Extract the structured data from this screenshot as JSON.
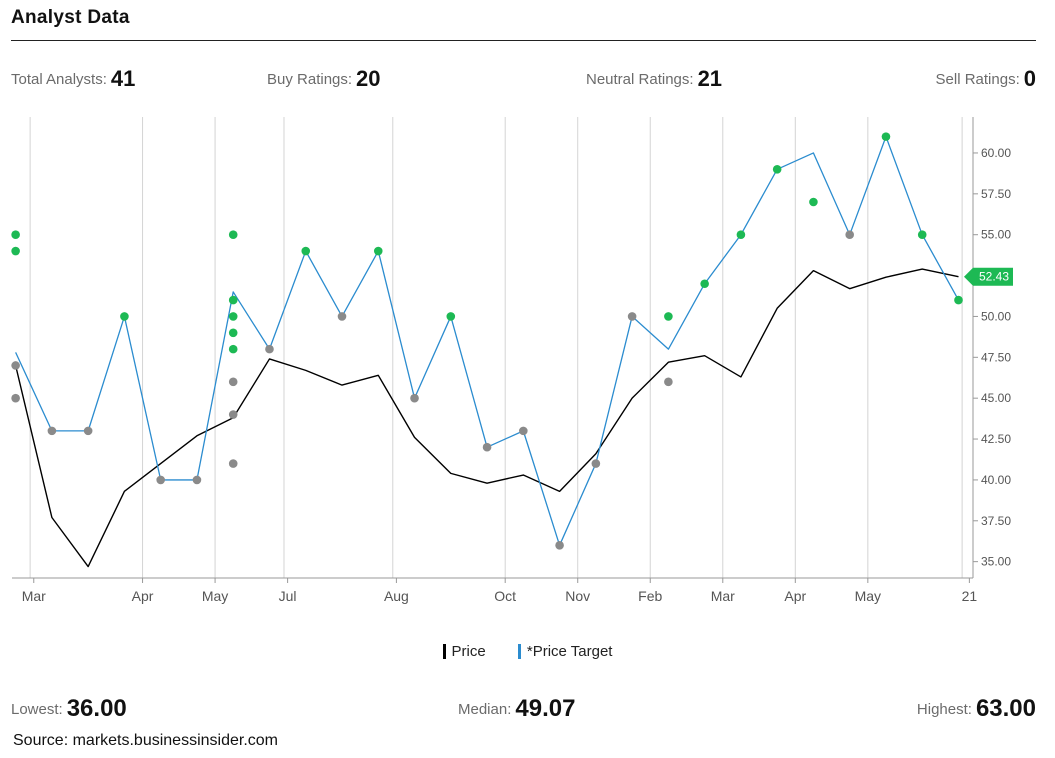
{
  "header": {
    "title": "Analyst Data"
  },
  "stats": {
    "total_label": "Total Analysts:",
    "total_value": "41",
    "buy_label": "Buy Ratings:",
    "buy_value": "20",
    "neutral_label": "Neutral Ratings:",
    "neutral_value": "21",
    "sell_label": "Sell Ratings:",
    "sell_value": "0"
  },
  "bottom": {
    "lowest_label": "Lowest:",
    "lowest_value": "36.00",
    "median_label": "Median:",
    "median_value": "49.07",
    "highest_label": "Highest:",
    "highest_value": "63.00"
  },
  "source": "Source: markets.businessinsider.com",
  "legend": {
    "price": "Price",
    "target": "*Price Target"
  },
  "colors": {
    "price": "#000000",
    "target": "#2b8ccf",
    "buy": "#1db954",
    "neutral": "#8a8a8a",
    "badge": "#1db954"
  },
  "chart_data": {
    "type": "line",
    "title": "",
    "xlabel": "",
    "ylabel": "",
    "x_tick_labels": [
      "Mar",
      "Apr",
      "May",
      "Jul",
      "Aug",
      "Oct",
      "Nov",
      "Feb",
      "Mar",
      "Apr",
      "May",
      "21"
    ],
    "x_tick_index": [
      0.5,
      3.5,
      5.5,
      7.5,
      10.5,
      13.5,
      15.5,
      17.5,
      19.5,
      21.5,
      23.5,
      26.3
    ],
    "x_grid_index": [
      0.4,
      3.5,
      5.5,
      7.4,
      10.4,
      13.5,
      15.5,
      17.5,
      19.5,
      21.5,
      23.5,
      26.1
    ],
    "x_range": [
      -0.1,
      26.4
    ],
    "ylim": [
      34,
      62.2
    ],
    "y_ticks": [
      "35.00",
      "37.50",
      "40.00",
      "42.50",
      "45.00",
      "47.50",
      "50.00",
      "52.50",
      "55.00",
      "57.50",
      "60.00"
    ],
    "grid": true,
    "last_price_label": "52.43",
    "last_price_value": 52.43,
    "series": [
      {
        "name": "Price",
        "x": [
          0,
          1,
          2,
          3,
          4,
          5,
          6,
          7,
          8,
          9,
          10,
          11,
          12,
          13,
          14,
          15,
          16,
          17,
          18,
          19,
          20,
          21,
          22,
          23,
          24,
          25,
          26
        ],
        "values": [
          47.0,
          37.7,
          34.7,
          39.3,
          41.0,
          42.7,
          43.8,
          47.4,
          46.7,
          45.8,
          46.4,
          42.6,
          40.4,
          39.8,
          40.3,
          39.3,
          41.6,
          45.0,
          47.2,
          47.6,
          46.3,
          50.5,
          52.8,
          51.7,
          52.4,
          52.9,
          52.43
        ]
      },
      {
        "name": "*Price Target",
        "x": [
          0,
          1,
          2,
          3,
          4,
          5,
          6,
          7,
          8,
          9,
          10,
          11,
          12,
          13,
          14,
          15,
          16,
          17,
          18,
          19,
          20,
          21,
          22,
          23,
          24,
          25,
          26
        ],
        "values": [
          47.8,
          43.0,
          43.0,
          50.0,
          40.0,
          40.0,
          51.5,
          48.0,
          54.0,
          50.0,
          54.0,
          45.0,
          50.0,
          42.0,
          43.0,
          36.0,
          41.0,
          50.0,
          48.0,
          52.0,
          55.0,
          59.0,
          60.0,
          55.0,
          61.0,
          55.0,
          51.0
        ]
      }
    ],
    "rating_points": [
      {
        "x": 0,
        "y": 55.0,
        "rating": "buy"
      },
      {
        "x": 0,
        "y": 54.0,
        "rating": "buy"
      },
      {
        "x": 0,
        "y": 47.0,
        "rating": "neutral"
      },
      {
        "x": 0,
        "y": 45.0,
        "rating": "neutral"
      },
      {
        "x": 1,
        "y": 43.0,
        "rating": "neutral"
      },
      {
        "x": 2,
        "y": 43.0,
        "rating": "neutral"
      },
      {
        "x": 3,
        "y": 50.0,
        "rating": "buy"
      },
      {
        "x": 4,
        "y": 40.0,
        "rating": "neutral"
      },
      {
        "x": 5,
        "y": 40.0,
        "rating": "neutral"
      },
      {
        "x": 6,
        "y": 55.0,
        "rating": "buy"
      },
      {
        "x": 6,
        "y": 51.0,
        "rating": "buy"
      },
      {
        "x": 6,
        "y": 50.0,
        "rating": "buy"
      },
      {
        "x": 6,
        "y": 49.0,
        "rating": "buy"
      },
      {
        "x": 6,
        "y": 48.0,
        "rating": "buy"
      },
      {
        "x": 6,
        "y": 46.0,
        "rating": "neutral"
      },
      {
        "x": 6,
        "y": 44.0,
        "rating": "neutral"
      },
      {
        "x": 6,
        "y": 41.0,
        "rating": "neutral"
      },
      {
        "x": 7,
        "y": 48.0,
        "rating": "neutral"
      },
      {
        "x": 8,
        "y": 54.0,
        "rating": "buy"
      },
      {
        "x": 9,
        "y": 50.0,
        "rating": "neutral"
      },
      {
        "x": 10,
        "y": 54.0,
        "rating": "buy"
      },
      {
        "x": 11,
        "y": 45.0,
        "rating": "neutral"
      },
      {
        "x": 12,
        "y": 50.0,
        "rating": "buy"
      },
      {
        "x": 13,
        "y": 42.0,
        "rating": "neutral"
      },
      {
        "x": 14,
        "y": 43.0,
        "rating": "neutral"
      },
      {
        "x": 15,
        "y": 36.0,
        "rating": "neutral"
      },
      {
        "x": 16,
        "y": 41.0,
        "rating": "neutral"
      },
      {
        "x": 17,
        "y": 50.0,
        "rating": "neutral"
      },
      {
        "x": 18,
        "y": 50.0,
        "rating": "buy"
      },
      {
        "x": 18,
        "y": 46.0,
        "rating": "neutral"
      },
      {
        "x": 19,
        "y": 52.0,
        "rating": "buy"
      },
      {
        "x": 20,
        "y": 55.0,
        "rating": "buy"
      },
      {
        "x": 21,
        "y": 59.0,
        "rating": "buy"
      },
      {
        "x": 22,
        "y": 57.0,
        "rating": "buy"
      },
      {
        "x": 23,
        "y": 55.0,
        "rating": "neutral"
      },
      {
        "x": 24,
        "y": 61.0,
        "rating": "buy"
      },
      {
        "x": 25,
        "y": 55.0,
        "rating": "buy"
      },
      {
        "x": 26,
        "y": 51.0,
        "rating": "buy"
      }
    ]
  }
}
